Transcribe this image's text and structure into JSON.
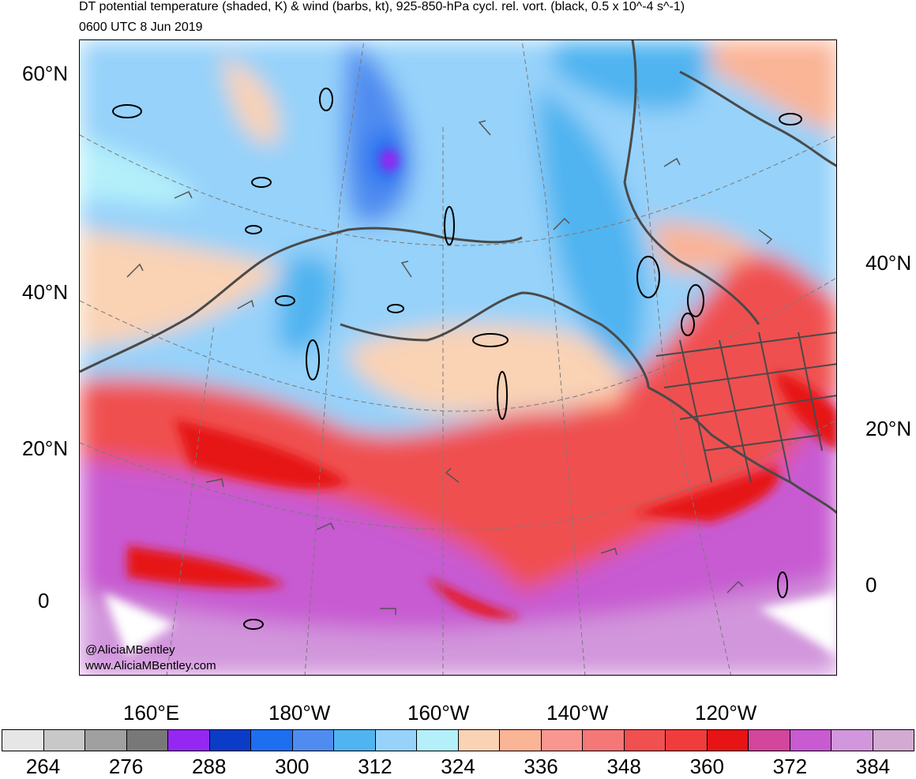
{
  "title": {
    "line1": "DT potential temperature (shaded, K) & wind (barbs, kt), 925-850-hPa cycl. rel. vort. (black, 0.5 x 10^-4 s^-1)",
    "line2": "0600 UTC 8 Jun 2019"
  },
  "lat_labels_left": [
    "60°N",
    "40°N",
    "20°N",
    "0"
  ],
  "lat_labels_right": [
    "40°N",
    "20°N",
    "0"
  ],
  "lon_labels": [
    "160°E",
    "180°W",
    "160°W",
    "140°W",
    "120°W"
  ],
  "credits": {
    "handle": "@AliciaMBentley",
    "website": "www.AliciaMBentley.com"
  },
  "colorbar": {
    "colors": [
      "#e6e6e6",
      "#c8c8c8",
      "#a0a0a0",
      "#787878",
      "#9428f0",
      "#0a3cc8",
      "#1e6ef0",
      "#508cf0",
      "#50b4f0",
      "#96d2fa",
      "#b4f0fa",
      "#fad2b4",
      "#fab496",
      "#fa9690",
      "#f47878",
      "#f05050",
      "#f03c3c",
      "#e61414",
      "#d2469b",
      "#c85ad2",
      "#d296dc",
      "#d2aad2"
    ],
    "labels": [
      "264",
      "276",
      "288",
      "300",
      "312",
      "324",
      "336",
      "348",
      "360",
      "372",
      "384"
    ]
  }
}
